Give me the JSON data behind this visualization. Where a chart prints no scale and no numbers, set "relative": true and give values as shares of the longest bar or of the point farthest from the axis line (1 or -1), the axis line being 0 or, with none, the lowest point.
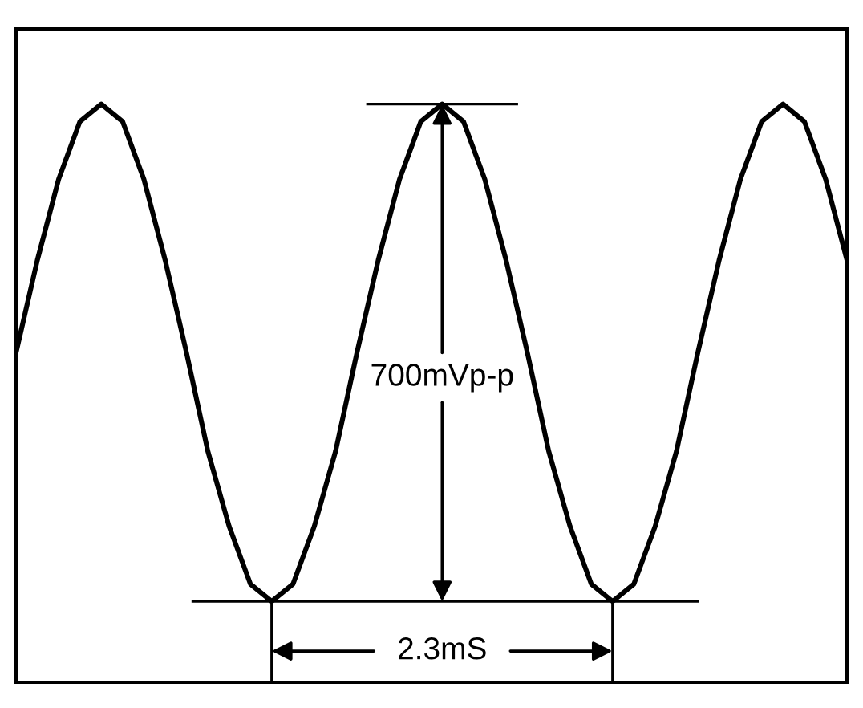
{
  "chart_data": {
    "type": "line",
    "relative": true,
    "color": "#000000",
    "line_style": "solid",
    "marker": "none",
    "categories": [
      null,
      null,
      null,
      null,
      null,
      null,
      null,
      null,
      null,
      null,
      null,
      null,
      null,
      null,
      null,
      null,
      null,
      null,
      null,
      null,
      null,
      null,
      null,
      null,
      null,
      null,
      null,
      null,
      null,
      null,
      null,
      null,
      null,
      null,
      null,
      null,
      null,
      null,
      null,
      null
    ],
    "values": [
      0.57,
      0.73,
      0.87,
      0.97,
      1,
      0.97,
      0.87,
      0.73,
      0.57,
      0.4,
      0.27,
      0.17,
      0.14,
      0.17,
      0.27,
      0.4,
      0.57,
      0.73,
      0.87,
      0.97,
      1,
      0.97,
      0.87,
      0.73,
      0.57,
      0.4,
      0.27,
      0.17,
      0.14,
      0.17,
      0.27,
      0.4,
      0.57,
      0.73,
      0.87,
      0.97,
      1,
      0.97,
      0.87,
      0.73
    ],
    "ref_lines": [
      {
        "axis": "y",
        "value": 0.14,
        "color": "#000000",
        "line_style": "solid"
      }
    ],
    "annotations": [
      "700mVp-p",
      "2.3mS"
    ]
  }
}
